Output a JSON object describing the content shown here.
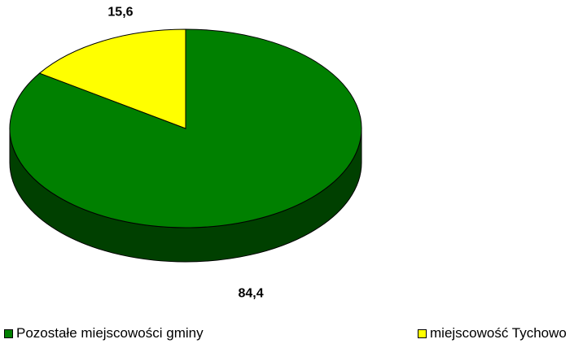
{
  "chart_data": {
    "type": "pie",
    "title": "",
    "style": "3d",
    "legend_position": "bottom",
    "series": [
      {
        "categories": [
          "Pozostałe miejscowości gminy",
          "miejscowość Tychowo"
        ],
        "values": [
          84.4,
          15.6
        ],
        "value_labels": [
          "84,4",
          "15,6"
        ],
        "colors": [
          "#008000",
          "#ffff00"
        ],
        "side_colors": [
          "#004000",
          "#808000"
        ]
      }
    ]
  }
}
